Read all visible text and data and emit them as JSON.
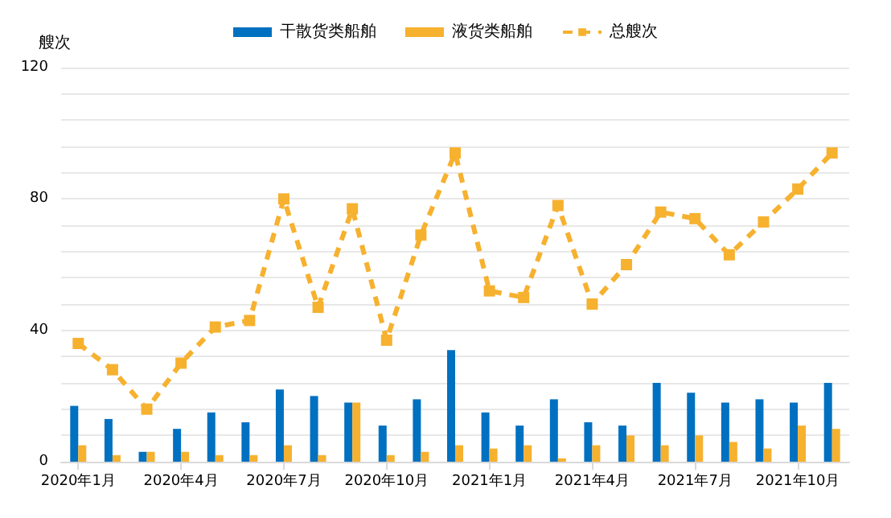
{
  "chart_data": {
    "type": "bar",
    "ylabel": "艘次",
    "categories": [
      "2020年1月",
      null,
      null,
      "2020年4月",
      null,
      null,
      "2020年7月",
      null,
      null,
      "2020年10月",
      null,
      null,
      "2021年1月",
      null,
      null,
      "2021年4月",
      null,
      null,
      "2021年7月",
      null,
      null,
      "2021年10月",
      null
    ],
    "series": [
      {
        "name": "干散货类船舶",
        "color": "#0070c0",
        "values": [
          17,
          13,
          3,
          10,
          15,
          12,
          22,
          20,
          18,
          11,
          19,
          34,
          15,
          11,
          19,
          12,
          11,
          24,
          21,
          18,
          19,
          18,
          24
        ]
      },
      {
        "name": "液货类船舶",
        "color": "#f6b12f",
        "values": [
          5,
          2,
          3,
          3,
          2,
          2,
          5,
          2,
          18,
          2,
          3,
          5,
          4,
          5,
          1,
          5,
          8,
          5,
          8,
          6,
          4,
          11,
          10
        ]
      },
      {
        "name": "总艘次",
        "type": "line",
        "color": "#f6b12f",
        "marker": "square",
        "line_style": "dashed",
        "values": [
          36,
          28,
          16,
          30,
          41,
          43,
          80,
          47,
          77,
          37,
          69,
          94,
          52,
          50,
          78,
          48,
          60,
          76,
          74,
          63,
          73,
          83,
          94
        ]
      }
    ],
    "ylim": [
      0,
      120
    ],
    "yticks": [
      0,
      {
        "value": 8,
        "label": null
      },
      {
        "value": 16,
        "label": null
      },
      {
        "value": 24,
        "label": null
      },
      {
        "value": 32,
        "label": null
      },
      40,
      {
        "value": 48,
        "label": null
      },
      {
        "value": 56,
        "label": null
      },
      {
        "value": 64,
        "label": null
      },
      {
        "value": 72,
        "label": null
      },
      80,
      {
        "value": 88,
        "label": null
      },
      {
        "value": 96,
        "label": null
      },
      {
        "value": 104,
        "label": null
      },
      {
        "value": 112,
        "label": null
      },
      120
    ],
    "grid": "y",
    "legend": "top"
  }
}
